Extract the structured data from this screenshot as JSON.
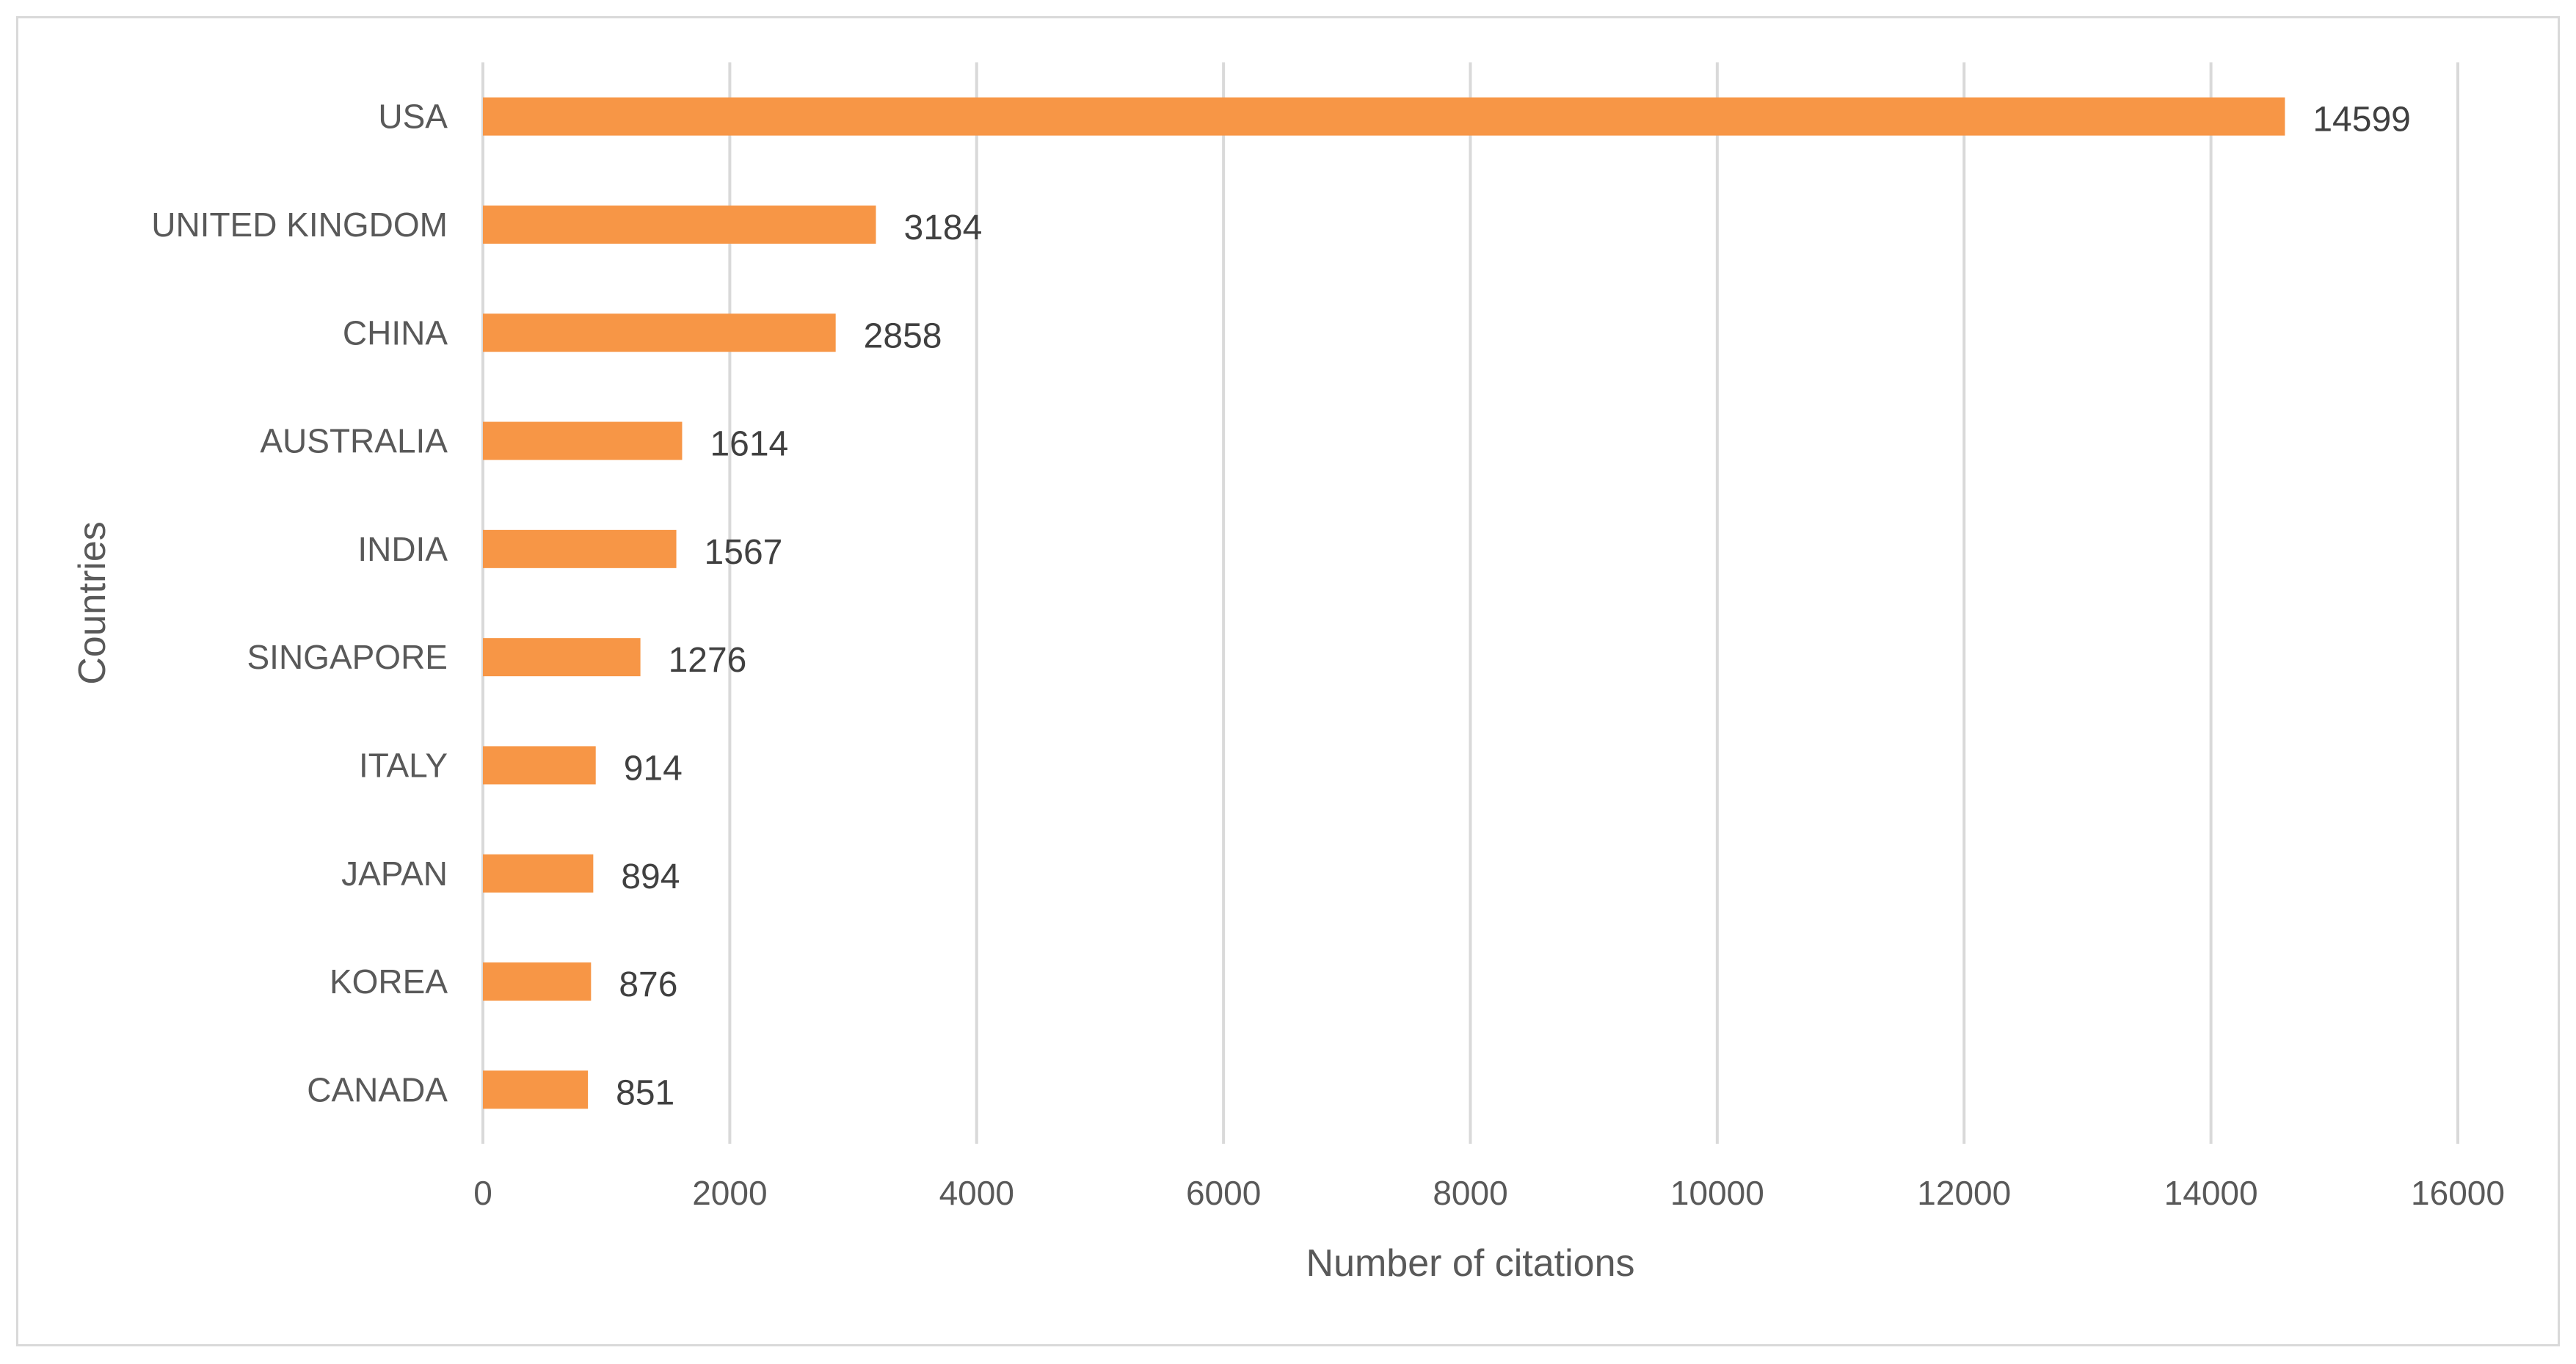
{
  "chart_data": {
    "type": "bar",
    "orientation": "horizontal",
    "categories": [
      "USA",
      "UNITED KINGDOM",
      "CHINA",
      "AUSTRALIA",
      "INDIA",
      "SINGAPORE",
      "ITALY",
      "JAPAN",
      "KOREA",
      "CANADA"
    ],
    "values": [
      14599,
      3184,
      2858,
      1614,
      1567,
      1276,
      914,
      894,
      876,
      851
    ],
    "data_labels": [
      "14599",
      "3184",
      "2858",
      "1614",
      "1567",
      "1276",
      "914",
      "894",
      "876",
      "851"
    ],
    "xlabel": "Number of citations",
    "ylabel": "Countries",
    "xlim": [
      0,
      16000
    ],
    "xticks": [
      0,
      2000,
      4000,
      6000,
      8000,
      10000,
      12000,
      14000,
      16000
    ],
    "xtick_labels": [
      "0",
      "2000",
      "4000",
      "6000",
      "8000",
      "10000",
      "12000",
      "14000",
      "16000"
    ],
    "grid": "vertical",
    "legend": "none",
    "colors": {
      "bar": "#F79646",
      "grid": "#d9d9d9",
      "text": "#595959",
      "data_label": "#404040",
      "frame": "#d9d9d9"
    }
  }
}
